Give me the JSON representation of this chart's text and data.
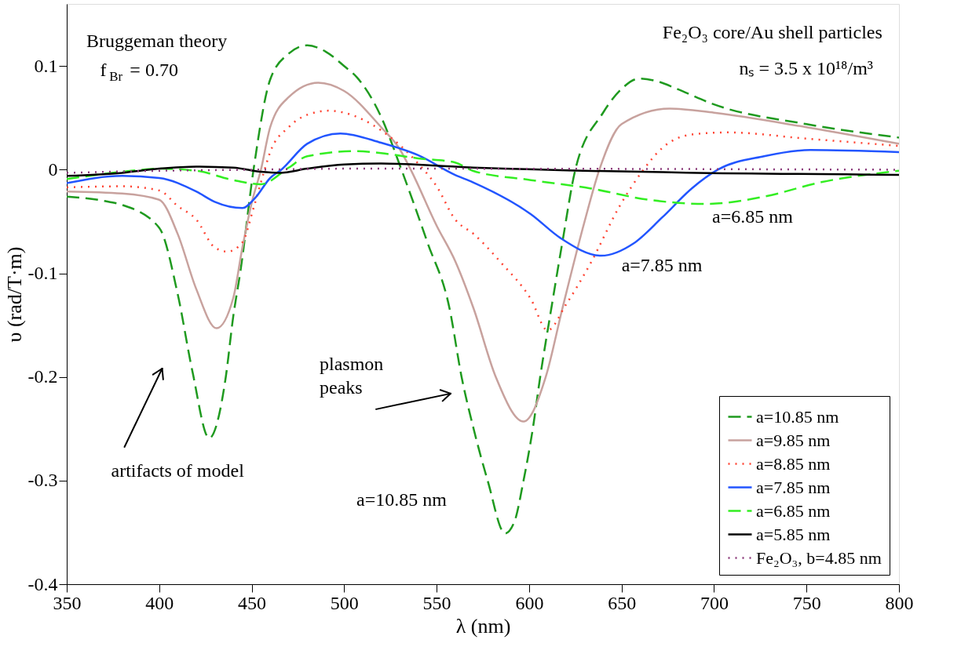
{
  "chart_data": {
    "type": "line",
    "xlabel": "λ (nm)",
    "ylabel": "υ (rad/T·m)",
    "xlim": [
      350,
      800
    ],
    "ylim": [
      -0.4,
      0.16
    ],
    "xticks": [
      350,
      400,
      450,
      500,
      550,
      600,
      650,
      700,
      750,
      800
    ],
    "yticks": [
      -0.4,
      -0.3,
      -0.2,
      -0.1,
      0,
      0.1
    ],
    "grid": false,
    "legend": "bottom right",
    "series": [
      {
        "name": "a=10.85 nm",
        "color": "#1f9a1f",
        "line_style": "dashed",
        "x": [
          350,
          370,
          380,
          400,
          410,
          418,
          427,
          436,
          440,
          444,
          451,
          460,
          470,
          480,
          490,
          500,
          507,
          520,
          531,
          545,
          557,
          563.5,
          570,
          577.6,
          587,
          592,
          597,
          602,
          606,
          612,
          618,
          625,
          640,
          650,
          659.6,
          670,
          680,
          700,
          750,
          800
        ],
        "values": [
          -0.026,
          -0.03,
          -0.034,
          -0.056,
          -0.12,
          -0.195,
          -0.259,
          -0.2,
          -0.142,
          -0.097,
          0,
          0.087,
          0.112,
          0.12,
          0.114,
          0.1,
          0.089,
          0.051,
          0,
          -0.07,
          -0.134,
          -0.2,
          -0.25,
          -0.3,
          -0.351,
          -0.34,
          -0.3,
          -0.25,
          -0.2,
          -0.134,
          -0.07,
          0,
          0.055,
          0.078,
          0.088,
          0.085,
          0.078,
          0.063,
          0.044,
          0.031
        ]
      },
      {
        "name": "a=9.85 nm",
        "color": "#c8a29e",
        "line_style": "solid",
        "x": [
          350,
          380,
          400,
          410,
          420,
          431,
          440,
          445,
          450,
          455,
          460,
          470,
          486,
          500,
          520,
          530,
          536,
          550,
          560,
          570,
          582,
          597,
          609,
          618,
          630,
          638,
          650,
          676,
          700,
          750,
          800
        ],
        "values": [
          -0.021,
          -0.023,
          -0.029,
          -0.062,
          -0.115,
          -0.153,
          -0.124,
          -0.075,
          -0.032,
          0,
          0.041,
          0.07,
          0.084,
          0.076,
          0.041,
          0.02,
          0,
          -0.054,
          -0.088,
          -0.134,
          -0.2,
          -0.243,
          -0.2,
          -0.134,
          -0.05,
          0,
          0.044,
          0.059,
          0.055,
          0.041,
          0.025
        ]
      },
      {
        "name": "a=8.85 nm",
        "color": "#ff4433",
        "line_style": "dotted",
        "x": [
          350,
          380,
          400,
          410,
          420,
          430,
          437,
          445,
          451,
          457,
          460,
          470,
          480,
          492,
          500,
          520,
          540,
          550,
          560,
          570,
          585,
          601,
          610,
          620,
          633,
          649,
          661,
          672,
          688,
          707,
          750,
          800
        ],
        "values": [
          -0.017,
          -0.016,
          -0.02,
          -0.035,
          -0.048,
          -0.075,
          -0.079,
          -0.07,
          -0.037,
          0,
          0.017,
          0.041,
          0.053,
          0.057,
          0.055,
          0.038,
          0.006,
          -0.016,
          -0.048,
          -0.062,
          -0.09,
          -0.125,
          -0.155,
          -0.13,
          -0.091,
          -0.035,
          -0.002,
          0.021,
          0.034,
          0.036,
          0.03,
          0.023
        ]
      },
      {
        "name": "a=7.85 nm",
        "color": "#2255ff",
        "line_style": "solid",
        "x": [
          350,
          380,
          400,
          420,
          430,
          445,
          452,
          460,
          466,
          480,
          498,
          520,
          540,
          560,
          569.5,
          601,
          617,
          639,
          656.6,
          672,
          688,
          702,
          727,
          752,
          800
        ],
        "values": [
          -0.013,
          -0.006,
          -0.008,
          -0.021,
          -0.031,
          -0.037,
          -0.027,
          -0.008,
          0,
          0.025,
          0.035,
          0.026,
          0.014,
          -0.005,
          -0.012,
          -0.043,
          -0.066,
          -0.083,
          -0.071,
          -0.046,
          -0.018,
          0,
          0.013,
          0.019,
          0.017
        ]
      },
      {
        "name": "a=6.85 nm",
        "color": "#33ee22",
        "line_style": "dashed",
        "x": [
          350,
          380,
          400,
          420,
          440,
          455,
          470,
          480,
          507,
          520,
          540,
          560,
          569.5,
          601,
          633,
          664.5,
          696,
          727,
          758,
          800
        ],
        "values": [
          -0.009,
          -0.002,
          0.001,
          -0.001,
          -0.01,
          -0.014,
          0.002,
          0.013,
          0.018,
          0.016,
          0.011,
          0.007,
          -0.001,
          -0.01,
          -0.018,
          -0.029,
          -0.033,
          -0.026,
          -0.012,
          -0.001
        ]
      },
      {
        "name": "a=5.85 nm",
        "color": "#000000",
        "line_style": "solid",
        "x": [
          350,
          380,
          400,
          420,
          440,
          455,
          465,
          480,
          500,
          520,
          550,
          570,
          800
        ],
        "values": [
          -0.006,
          -0.003,
          0.001,
          0.003,
          0.002,
          -0.002,
          -0.003,
          0.001,
          0.005,
          0.006,
          0.004,
          0.002,
          -0.005
        ]
      },
      {
        "name": "Fe₂O₃, b=4.85 nm",
        "color": "#8b3a7a",
        "line_style": "dotted",
        "x": [
          350,
          400,
          450,
          500,
          550,
          800
        ],
        "values": [
          -0.003,
          -0.001,
          0,
          0.001,
          0.001,
          0
        ]
      }
    ],
    "annotations": [
      "Bruggeman theory",
      "f$_{Br}$ = 0.70",
      "Fe₂O₃ core/Au shell particles",
      "nₛ = 3.5 x 10¹⁸/m³",
      "a=6.85 nm",
      "a=7.85 nm",
      "a=10.85 nm",
      "plasmon peaks",
      "artifacts of model"
    ]
  }
}
